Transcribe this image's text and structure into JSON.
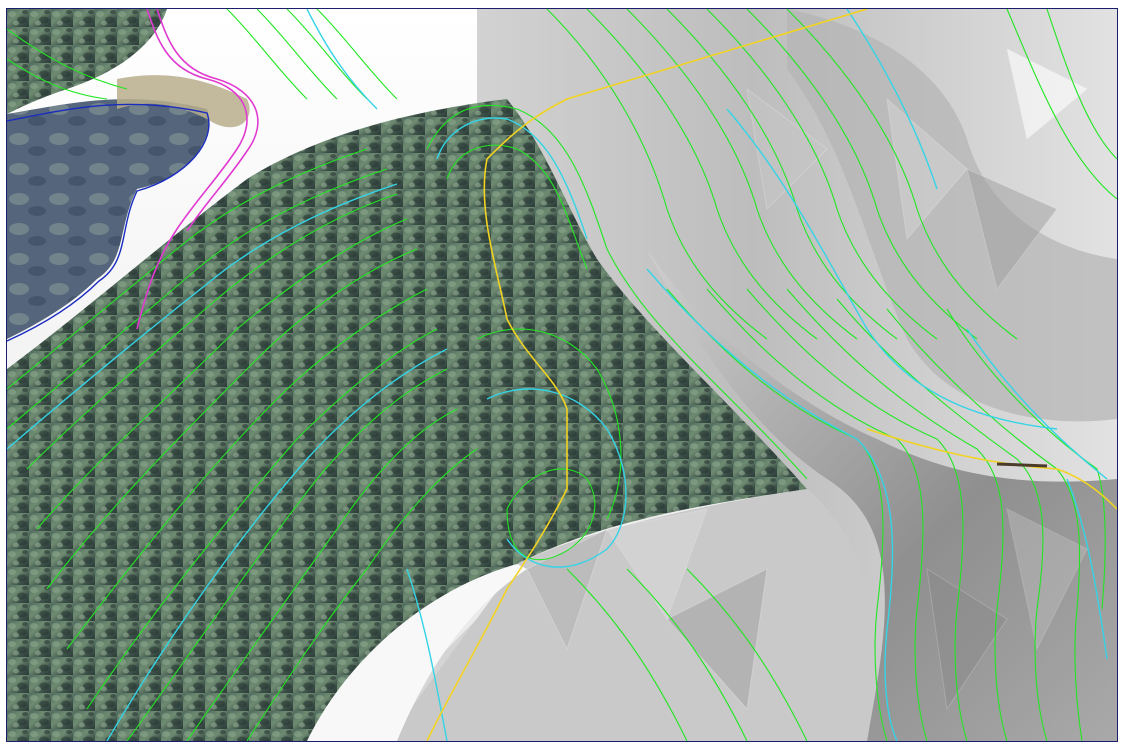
{
  "viewer": {
    "mode": "3d-terrain",
    "colors": {
      "frame_border": "#1b1f6b",
      "terrain_light": "#f1f1f1",
      "terrain_mid": "#c2c2c2",
      "terrain_dark": "#8e8e8e",
      "imagery_forest_light": "#7e9a7e",
      "imagery_forest_dark": "#2c3f3a",
      "imagery_water": "#4a5c73",
      "contour_minor": "#22e622",
      "contour_major": "#34d4e6",
      "ridge_line": "#f2d321",
      "road_line": "#e13ad1",
      "shoreline": "#1a2bbf"
    }
  }
}
